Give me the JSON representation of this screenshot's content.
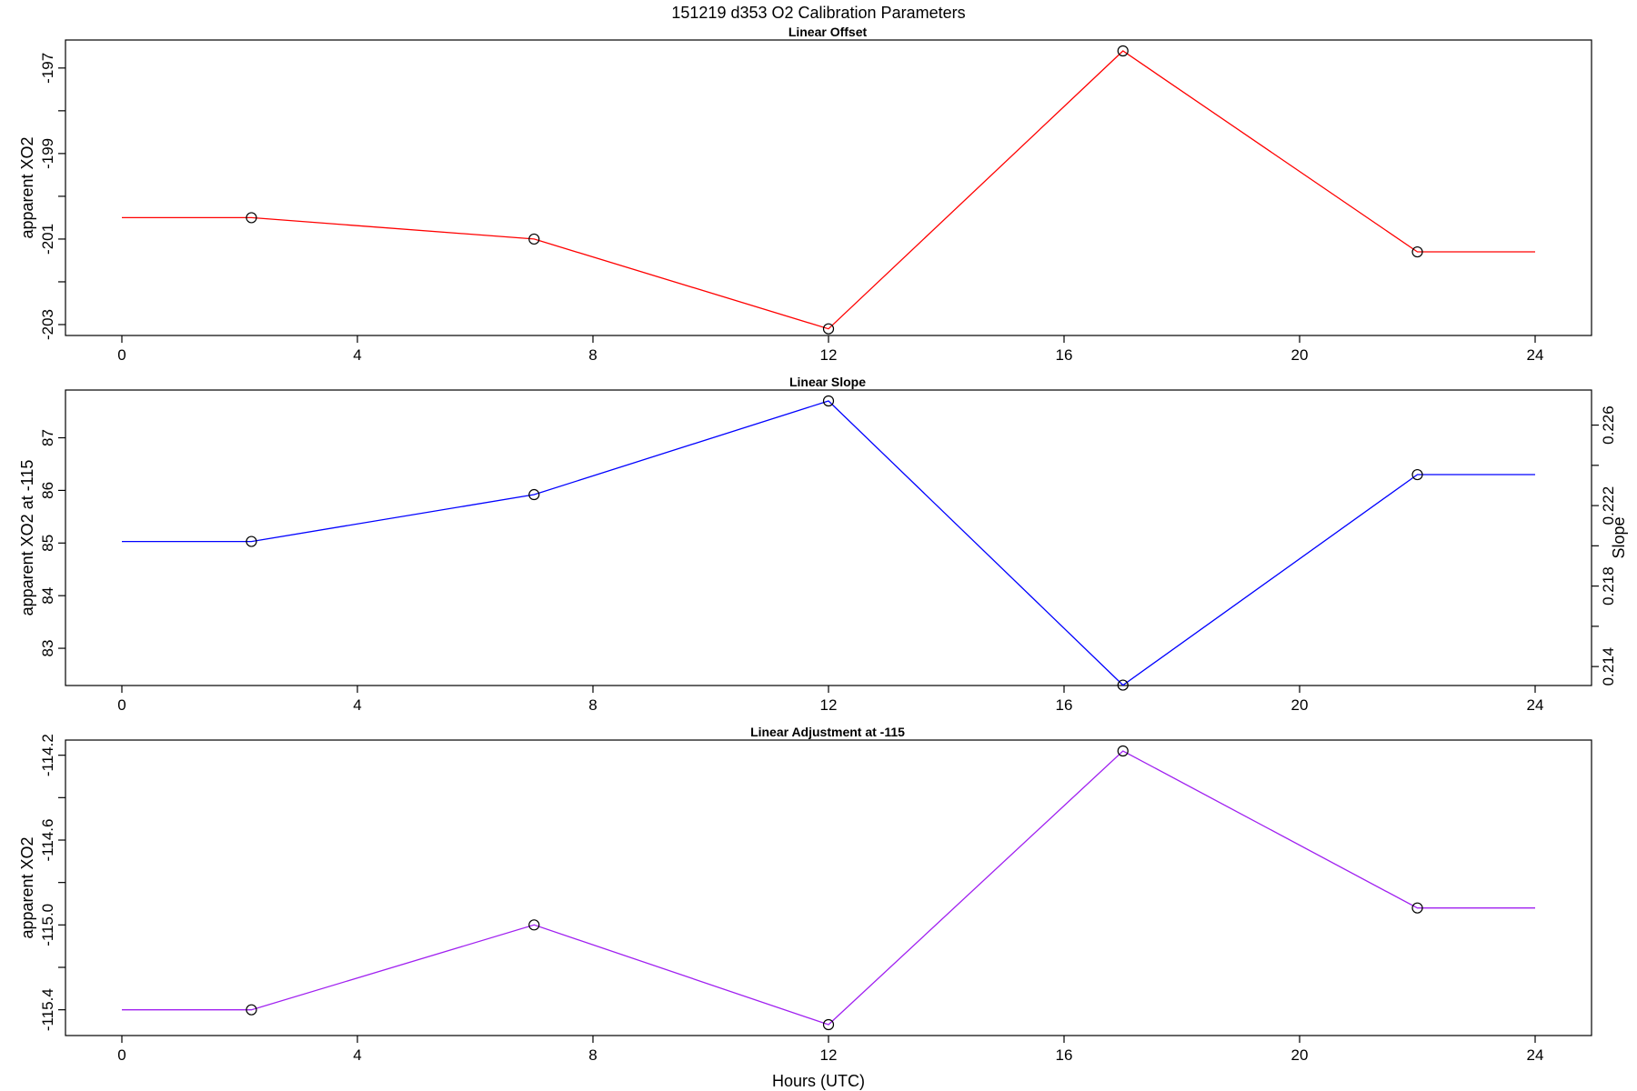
{
  "title": "151219   d353   O2 Calibration Parameters",
  "xlabel": "Hours (UTC)",
  "colors": {
    "offset": "#ff0000",
    "slope": "#0000ff",
    "adjustment": "#a020f0"
  },
  "chart_data": [
    {
      "type": "line",
      "title": "Linear Offset",
      "xlabel": "",
      "ylabel": "apparent XO2",
      "xlim": [
        0,
        24
      ],
      "ylim": [
        -203,
        -196.6
      ],
      "xticks": [
        0,
        4,
        8,
        12,
        16,
        20,
        24
      ],
      "yticks": [
        -197,
        -198,
        -199,
        -200,
        -201,
        -202,
        -203
      ],
      "ytick_labels": [
        "-197",
        "",
        "-199",
        "",
        "-201",
        "",
        "-203"
      ],
      "series": [
        {
          "x": [
            0,
            2.2,
            7.0,
            12.0,
            17.0,
            22.0,
            24.0
          ],
          "y": [
            -200.5,
            -200.5,
            -201.0,
            -203.1,
            -196.6,
            -201.3,
            -201.3
          ],
          "markers": [
            false,
            true,
            true,
            true,
            true,
            true,
            false
          ]
        }
      ]
    },
    {
      "type": "line",
      "title": "Linear Slope",
      "xlabel": "",
      "ylabel": "apparent XO2 at -115",
      "xlim": [
        0,
        24
      ],
      "ylim": [
        82.5,
        87.7
      ],
      "xticks": [
        0,
        4,
        8,
        12,
        16,
        20,
        24
      ],
      "yticks": [
        83,
        84,
        85,
        86,
        87
      ],
      "ytick_labels": [
        "83",
        "84",
        "85",
        "86",
        "87"
      ],
      "y2label": "Slope",
      "y2lim": [
        0.2136,
        0.2272
      ],
      "y2ticks": [
        0.214,
        0.216,
        0.218,
        0.22,
        0.222,
        0.224,
        0.226
      ],
      "y2tick_labels": [
        "0.214",
        "",
        "0.218",
        "",
        "0.222",
        "",
        "0.226"
      ],
      "series": [
        {
          "x": [
            0,
            2.2,
            7.0,
            12.0,
            17.0,
            22.0,
            24.0
          ],
          "y": [
            85.03,
            85.03,
            85.92,
            87.7,
            82.3,
            86.3,
            86.3
          ],
          "markers": [
            false,
            true,
            true,
            true,
            true,
            true,
            false
          ]
        }
      ]
    },
    {
      "type": "line",
      "title": "Linear Adjustment at -115",
      "xlabel": "Hours (UTC)",
      "ylabel": "apparent XO2",
      "xlim": [
        0,
        24
      ],
      "ylim": [
        -115.47,
        -114.18
      ],
      "xticks": [
        0,
        4,
        8,
        12,
        16,
        20,
        24
      ],
      "yticks": [
        -114.2,
        -114.4,
        -114.6,
        -114.8,
        -115.0,
        -115.2,
        -115.4
      ],
      "ytick_labels": [
        "-114.2",
        "",
        "-114.6",
        "",
        "-115.0",
        "",
        "-115.4"
      ],
      "series": [
        {
          "x": [
            0,
            2.2,
            7.0,
            12.0,
            17.0,
            22.0,
            24.0
          ],
          "y": [
            -115.4,
            -115.4,
            -115.0,
            -115.47,
            -114.18,
            -114.92,
            -114.92
          ],
          "markers": [
            false,
            true,
            true,
            true,
            true,
            true,
            false
          ]
        }
      ]
    }
  ]
}
